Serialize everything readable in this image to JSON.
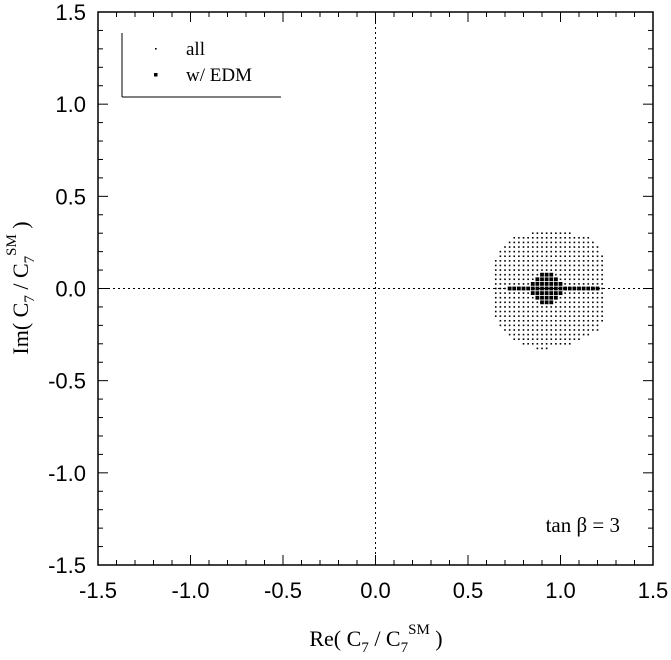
{
  "chart_data": {
    "type": "scatter",
    "xlim": [
      -1.5,
      1.5
    ],
    "ylim": [
      -1.5,
      1.5
    ],
    "x_ticks": [
      -1.5,
      -1.0,
      -0.5,
      0.0,
      0.5,
      1.0,
      1.5
    ],
    "y_ticks": [
      -1.5,
      -1.0,
      -0.5,
      0.0,
      0.5,
      1.0,
      1.5
    ],
    "x_tick_labels": [
      "-1.5",
      "-1.0",
      "-0.5",
      "0.0",
      "0.5",
      "1.0",
      "1.5"
    ],
    "y_tick_labels": [
      "-1.5",
      "-1.0",
      "-0.5",
      "0.0",
      "0.5",
      "1.0",
      "1.5"
    ],
    "xlabel": {
      "main": "Re( C",
      "sub1": "7",
      "mid": " / C",
      "sub2": "7",
      "sup": "SM",
      "end": " )"
    },
    "ylabel": {
      "main": "Im( C",
      "sub1": "7",
      "mid": " / C",
      "sub2": "7",
      "sup": "SM",
      "end": " )"
    },
    "reference_lines": {
      "x": 0.0,
      "y": 0.0,
      "style": "dotted"
    },
    "legend": {
      "placement": "top-left",
      "entries": [
        "all",
        "w/ EDM"
      ]
    },
    "annotation": "tan β = 3",
    "series": [
      {
        "name": "all",
        "marker": "small-dot",
        "grid": {
          "x_step": 0.025,
          "y_step": 0.025
        },
        "rows": [
          {
            "y": 0.3,
            "x_range": [
              0.85,
              1.05
            ]
          },
          {
            "y": 0.275,
            "x_range": [
              0.75,
              1.15
            ]
          },
          {
            "y": 0.25,
            "x_range": [
              0.725,
              1.175
            ]
          },
          {
            "y": 0.225,
            "x_range": [
              0.7,
              1.2
            ]
          },
          {
            "y": 0.2,
            "x_range": [
              0.675,
              1.2
            ]
          },
          {
            "y": 0.175,
            "x_range": [
              0.675,
              1.225
            ]
          },
          {
            "y": 0.15,
            "x_range": [
              0.65,
              1.225
            ]
          },
          {
            "y": 0.125,
            "x_range": [
              0.65,
              1.225
            ]
          },
          {
            "y": 0.1,
            "x_range": [
              0.65,
              1.225
            ]
          },
          {
            "y": 0.075,
            "x_range": [
              0.65,
              1.225
            ]
          },
          {
            "y": 0.05,
            "x_range": [
              0.65,
              1.225
            ]
          },
          {
            "y": 0.025,
            "x_range": [
              0.65,
              1.225
            ]
          },
          {
            "y": 0.0,
            "x_range": [
              0.65,
              1.225
            ]
          },
          {
            "y": -0.025,
            "x_range": [
              0.65,
              1.225
            ]
          },
          {
            "y": -0.05,
            "x_range": [
              0.65,
              1.225
            ]
          },
          {
            "y": -0.075,
            "x_range": [
              0.65,
              1.225
            ]
          },
          {
            "y": -0.1,
            "x_range": [
              0.65,
              1.225
            ]
          },
          {
            "y": -0.125,
            "x_range": [
              0.65,
              1.225
            ]
          },
          {
            "y": -0.15,
            "x_range": [
              0.65,
              1.225
            ]
          },
          {
            "y": -0.175,
            "x_range": [
              0.675,
              1.225
            ]
          },
          {
            "y": -0.2,
            "x_range": [
              0.675,
              1.2
            ]
          },
          {
            "y": -0.225,
            "x_range": [
              0.7,
              1.2
            ]
          },
          {
            "y": -0.25,
            "x_range": [
              0.725,
              1.15
            ]
          },
          {
            "y": -0.275,
            "x_range": [
              0.75,
              1.1
            ]
          },
          {
            "y": -0.3,
            "x_range": [
              0.8,
              1.05
            ]
          },
          {
            "y": -0.325,
            "x_range": [
              0.875,
              0.925
            ]
          }
        ]
      },
      {
        "name": "w/ EDM",
        "marker": "square",
        "points": [
          [
            0.9,
            0.075
          ],
          [
            0.925,
            0.075
          ],
          [
            0.95,
            0.075
          ],
          [
            0.875,
            0.05
          ],
          [
            0.9,
            0.05
          ],
          [
            0.925,
            0.05
          ],
          [
            0.95,
            0.05
          ],
          [
            0.975,
            0.05
          ],
          [
            0.85,
            0.025
          ],
          [
            0.875,
            0.025
          ],
          [
            0.9,
            0.025
          ],
          [
            0.925,
            0.025
          ],
          [
            0.95,
            0.025
          ],
          [
            0.975,
            0.025
          ],
          [
            1.0,
            0.025
          ],
          [
            0.725,
            0.0
          ],
          [
            0.75,
            0.0
          ],
          [
            0.775,
            0.0
          ],
          [
            0.8,
            0.0
          ],
          [
            0.825,
            0.0
          ],
          [
            0.85,
            0.0
          ],
          [
            0.875,
            0.0
          ],
          [
            0.9,
            0.0
          ],
          [
            0.925,
            0.0
          ],
          [
            0.95,
            0.0
          ],
          [
            0.975,
            0.0
          ],
          [
            1.0,
            0.0
          ],
          [
            1.025,
            0.0
          ],
          [
            1.05,
            0.0
          ],
          [
            1.075,
            0.0
          ],
          [
            1.1,
            0.0
          ],
          [
            1.125,
            0.0
          ],
          [
            1.15,
            0.0
          ],
          [
            1.175,
            0.0
          ],
          [
            1.2,
            0.0
          ],
          [
            0.85,
            -0.025
          ],
          [
            0.875,
            -0.025
          ],
          [
            0.9,
            -0.025
          ],
          [
            0.925,
            -0.025
          ],
          [
            0.95,
            -0.025
          ],
          [
            0.975,
            -0.025
          ],
          [
            1.0,
            -0.025
          ],
          [
            0.875,
            -0.05
          ],
          [
            0.9,
            -0.05
          ],
          [
            0.925,
            -0.05
          ],
          [
            0.95,
            -0.05
          ],
          [
            0.975,
            -0.05
          ],
          [
            0.9,
            -0.075
          ],
          [
            0.925,
            -0.075
          ],
          [
            0.95,
            -0.075
          ]
        ]
      }
    ]
  }
}
